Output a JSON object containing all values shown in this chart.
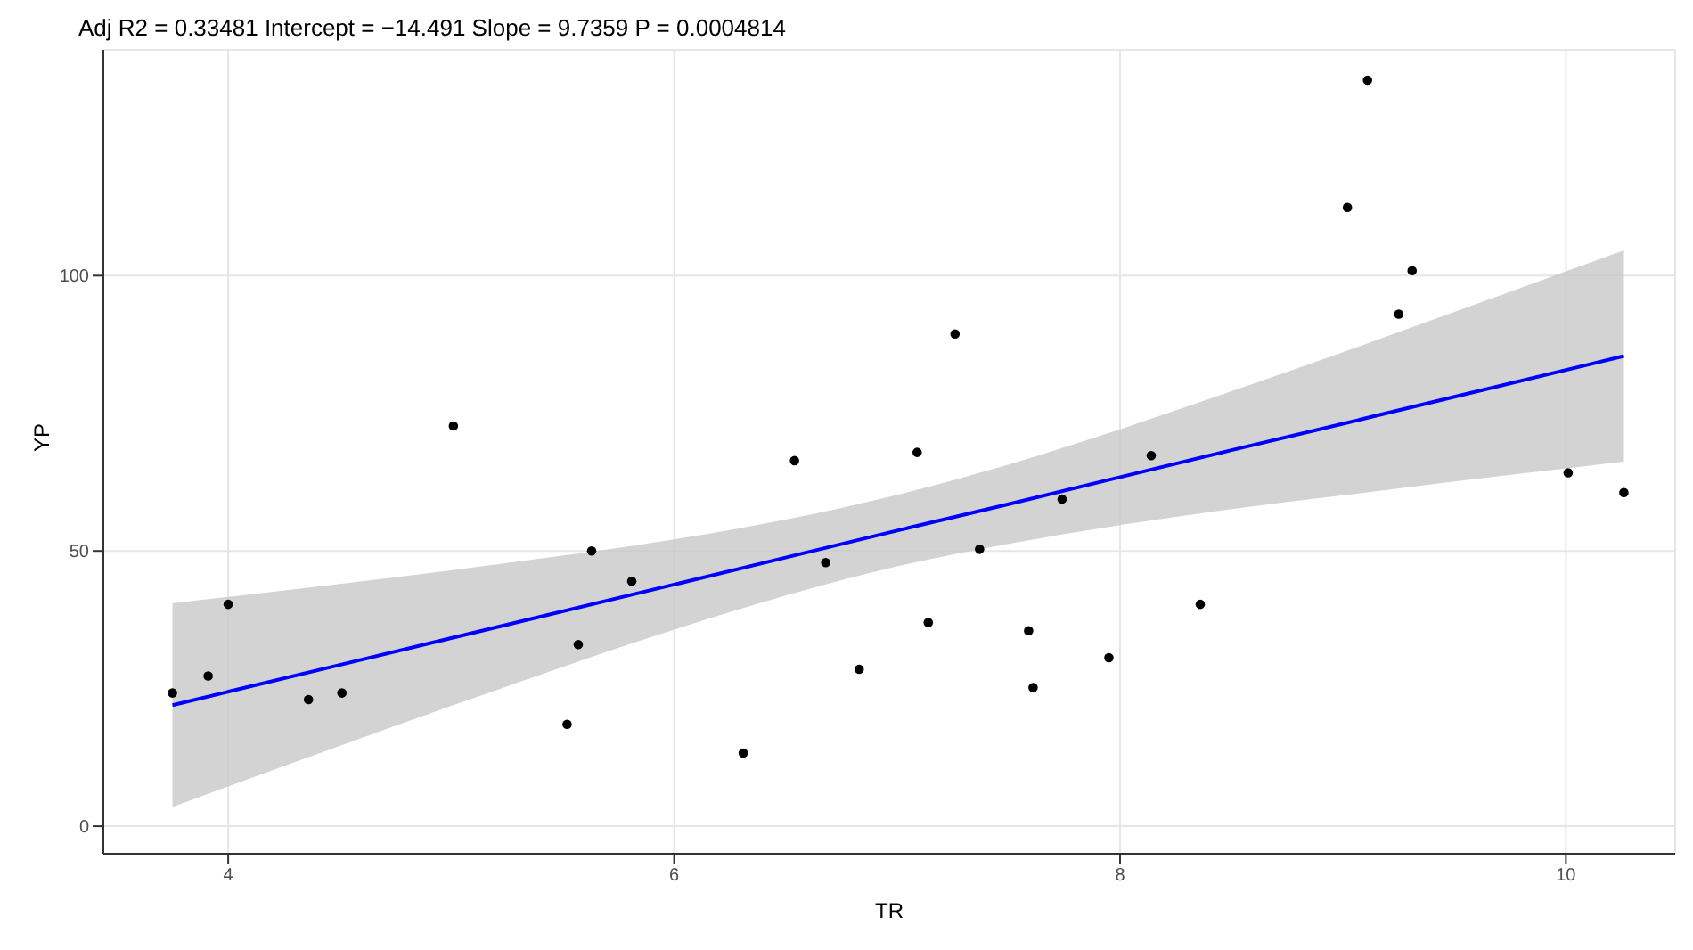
{
  "chart_data": {
    "type": "scatter",
    "title": "Adj R2 =  0.33481 Intercept = −14.491  Slope = 9.7359  P = 0.0004814",
    "xlabel": "TR",
    "ylabel": "YP",
    "xlim": [
      3.44,
      10.49
    ],
    "xticks": [
      4,
      6,
      8,
      10
    ],
    "ylim": [
      -5,
      141
    ],
    "yticks": [
      0,
      50,
      100
    ],
    "grid": true,
    "legend": false,
    "series": [
      {
        "color": "#000000",
        "marker": "circle",
        "x": [
          3.75,
          3.91,
          4.0,
          4.36,
          4.51,
          5.01,
          5.52,
          5.57,
          5.63,
          5.81,
          6.31,
          6.54,
          6.68,
          6.83,
          7.09,
          7.14,
          7.26,
          7.37,
          7.59,
          7.61,
          7.74,
          7.95,
          8.14,
          8.36,
          9.02,
          9.11,
          9.25,
          9.31,
          10.01,
          10.26
        ],
        "values": [
          24.2,
          27.3,
          40.3,
          23.0,
          24.2,
          72.7,
          18.5,
          33.0,
          50.0,
          44.5,
          13.3,
          66.4,
          47.9,
          28.5,
          67.9,
          37.0,
          89.4,
          50.3,
          35.5,
          25.2,
          59.4,
          30.6,
          67.3,
          40.3,
          112.4,
          135.5,
          93.0,
          100.9,
          64.2,
          60.6
        ]
      },
      {
        "type": "line",
        "color": "#0000ff",
        "line_style": "solid",
        "x": [
          3.75,
          4.5,
          5.25,
          6,
          6.5,
          7,
          7.5,
          8,
          8.5,
          9,
          9.5,
          10.26
        ],
        "values": [
          22.0,
          29.3,
          36.6,
          43.9,
          48.8,
          53.7,
          58.5,
          63.4,
          68.3,
          73.1,
          78.0,
          85.4
        ],
        "lower": [
          3.5,
          14.6,
          25.4,
          35.7,
          41.9,
          47.2,
          51.3,
          54.7,
          57.6,
          60.1,
          62.6,
          66.2
        ],
        "upper": [
          40.5,
          44.0,
          47.8,
          52.1,
          55.7,
          60.2,
          65.7,
          72.1,
          79.0,
          86.1,
          93.4,
          104.6
        ]
      }
    ]
  }
}
